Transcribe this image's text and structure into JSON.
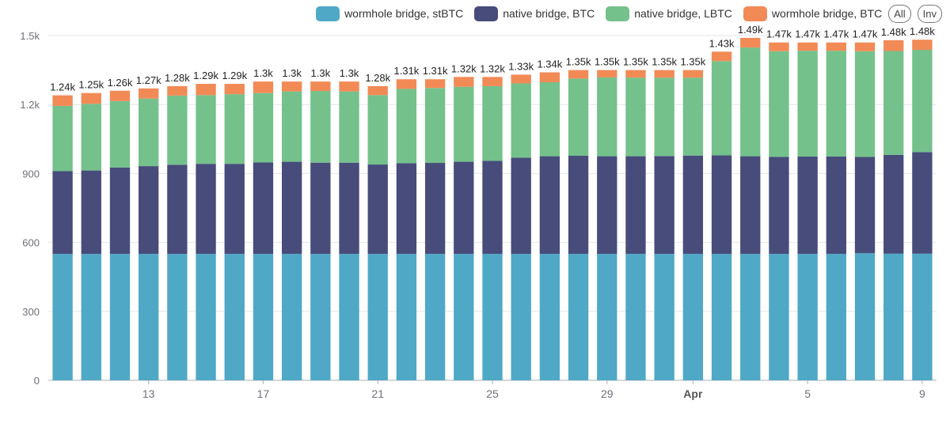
{
  "legend": {
    "items": [
      {
        "label": "wormhole bridge, stBTC",
        "color": "#4fa8c6"
      },
      {
        "label": "native bridge, BTC",
        "color": "#474c7b"
      },
      {
        "label": "native bridge, LBTC",
        "color": "#74c18b"
      },
      {
        "label": "wormhole bridge, BTC",
        "color": "#f28a56"
      }
    ],
    "all_label": "All",
    "inv_label": "Inv"
  },
  "chart_data": {
    "type": "bar",
    "stacked": true,
    "ylim": [
      0,
      1500
    ],
    "yticks": [
      0,
      300,
      600,
      900,
      "1.2k",
      "1.5k"
    ],
    "ytick_values": [
      0,
      300,
      600,
      900,
      1200,
      1500
    ],
    "grid": true,
    "legend_position": "top-right",
    "xtick_labels": [
      {
        "index": 3,
        "label": "13",
        "bold": false
      },
      {
        "index": 7,
        "label": "17",
        "bold": false
      },
      {
        "index": 11,
        "label": "21",
        "bold": false
      },
      {
        "index": 15,
        "label": "25",
        "bold": false
      },
      {
        "index": 19,
        "label": "29",
        "bold": false
      },
      {
        "index": 22,
        "label": "Apr",
        "bold": true
      },
      {
        "index": 26,
        "label": "5",
        "bold": false
      },
      {
        "index": 30,
        "label": "9",
        "bold": false
      }
    ],
    "totals_labels": [
      "1.24k",
      "1.25k",
      "1.26k",
      "1.27k",
      "1.28k",
      "1.29k",
      "1.29k",
      "1.3k",
      "1.3k",
      "1.3k",
      "1.3k",
      "1.28k",
      "1.31k",
      "1.31k",
      "1.32k",
      "1.32k",
      "1.33k",
      "1.34k",
      "1.35k",
      "1.35k",
      "1.35k",
      "1.35k",
      "1.35k",
      "1.43k",
      "1.49k",
      "1.47k",
      "1.47k",
      "1.47k",
      "1.47k",
      "1.48k",
      "1.48k"
    ],
    "series": [
      {
        "name": "wormhole bridge, stBTC",
        "color": "#4fa8c6",
        "values": [
          550,
          550,
          550,
          550,
          550,
          550,
          550,
          550,
          550,
          550,
          550,
          550,
          550,
          550,
          550,
          550,
          550,
          550,
          550,
          550,
          550,
          550,
          550,
          550,
          550,
          550,
          550,
          550,
          553,
          551,
          551
        ]
      },
      {
        "name": "native bridge, BTC",
        "color": "#474c7b",
        "values": [
          360,
          363,
          376,
          382,
          388,
          392,
          392,
          398,
          401,
          397,
          397,
          389,
          395,
          396,
          401,
          405,
          419,
          425,
          427,
          425,
          425,
          426,
          428,
          429,
          425,
          422,
          424,
          424,
          419,
          430,
          442
        ]
      },
      {
        "name": "native bridge, LBTC",
        "color": "#74c18b",
        "values": [
          284,
          290,
          289,
          294,
          301,
          299,
          303,
          302,
          306,
          312,
          310,
          302,
          323,
          326,
          326,
          325,
          323,
          322,
          336,
          343,
          342,
          341,
          339,
          410,
          473,
          460,
          460,
          460,
          460,
          452,
          445
        ]
      },
      {
        "name": "wormhole bridge, BTC",
        "color": "#f28a56",
        "values": [
          46,
          47,
          45,
          44,
          41,
          49,
          45,
          50,
          43,
          41,
          43,
          39,
          42,
          38,
          43,
          40,
          38,
          43,
          37,
          32,
          33,
          33,
          33,
          41,
          42,
          38,
          36,
          36,
          38,
          47,
          44
        ]
      }
    ]
  }
}
